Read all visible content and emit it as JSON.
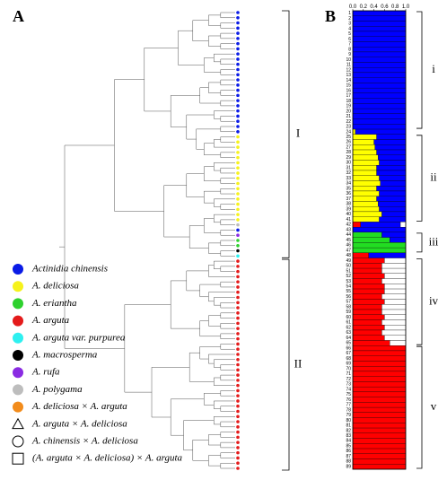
{
  "panels": {
    "a": "A",
    "b": "B"
  },
  "clades": [
    "I",
    "II"
  ],
  "legend": [
    {
      "label": "Actinidia chinensis",
      "color": "#0a1be6",
      "marker": "circle"
    },
    {
      "label": "A. deliciosa",
      "color": "#f6f21c",
      "marker": "circle"
    },
    {
      "label": "A. eriantha",
      "color": "#2ed12e",
      "marker": "circle"
    },
    {
      "label": "A. arguta",
      "color": "#e41b1b",
      "marker": "circle"
    },
    {
      "label": "A. arguta var. purpurea",
      "color": "#2ef0f0",
      "marker": "circle"
    },
    {
      "label": "A. macrosperma",
      "color": "#000000",
      "marker": "circle"
    },
    {
      "label": "A. rufa",
      "color": "#8a2be2",
      "marker": "circle"
    },
    {
      "label": "A. polygama",
      "color": "#bdbdbd",
      "marker": "circle"
    },
    {
      "label": "A. deliciosa × A. arguta",
      "color": "#f28c1c",
      "marker": "circle"
    },
    {
      "label": "A. arguta × A. deliciosa",
      "color": "#000000",
      "marker": "triangle"
    },
    {
      "label": "A. chinensis × A. deliciosa",
      "color": "#000000",
      "marker": "open-circle"
    },
    {
      "label": "(A. arguta × A. deliciosa) × A. arguta",
      "color": "#000000",
      "marker": "square"
    }
  ],
  "chart_data": {
    "type": "stacked-bar-horizontal",
    "xlim": [
      0,
      1
    ],
    "xticks": [
      {
        "value": 0,
        "label": "0.0"
      },
      0.2,
      0.4,
      0.6,
      0.8,
      {
        "value": 1,
        "label": "1.0"
      }
    ],
    "categories": [
      1,
      2,
      3,
      4,
      5,
      6,
      7,
      8,
      9,
      10,
      11,
      12,
      13,
      14,
      15,
      16,
      17,
      18,
      19,
      20,
      21,
      22,
      23,
      24,
      25,
      26,
      27,
      28,
      29,
      30,
      31,
      32,
      33,
      34,
      35,
      36,
      37,
      38,
      39,
      40,
      41,
      42,
      43,
      44,
      45,
      46,
      47,
      48,
      49,
      50,
      51,
      52,
      53,
      54,
      55,
      56,
      57,
      58,
      59,
      60,
      61,
      62,
      63,
      64,
      65,
      66,
      67,
      68,
      69,
      70,
      71,
      72,
      73,
      74,
      75,
      76,
      77,
      78,
      79,
      80,
      81,
      82,
      83,
      84,
      85,
      86,
      87,
      88,
      89
    ],
    "series": [
      {
        "color": "#ff0000",
        "values": [
          0,
          0,
          0,
          0,
          0,
          0,
          0,
          0,
          0,
          0,
          0,
          0,
          0,
          0,
          0,
          0,
          0,
          0,
          0,
          0,
          0,
          0,
          0,
          0,
          0,
          0,
          0,
          0,
          0,
          0,
          0,
          0,
          0,
          0,
          0,
          0,
          0,
          0,
          0,
          0,
          0,
          0.15,
          0,
          0,
          0,
          0,
          0,
          0.3,
          0.6,
          0.55,
          0.55,
          0.6,
          0.55,
          0.6,
          0.6,
          0.55,
          0.6,
          0.55,
          0.55,
          0.6,
          0.55,
          0.6,
          0.55,
          0.6,
          0.7,
          1,
          1,
          1,
          1,
          1,
          1,
          1,
          1,
          1,
          1,
          1,
          1,
          1,
          1,
          1,
          1,
          1,
          1,
          1,
          1,
          1,
          1,
          1,
          1
        ]
      },
      {
        "color": "#22dd22",
        "values": [
          0,
          0,
          0,
          0,
          0,
          0,
          0,
          0,
          0,
          0,
          0,
          0,
          0,
          0,
          0,
          0,
          0,
          0,
          0,
          0,
          0,
          0,
          0,
          0,
          0,
          0,
          0,
          0,
          0,
          0,
          0,
          0,
          0,
          0,
          0,
          0,
          0,
          0,
          0,
          0,
          0,
          0,
          0,
          0.55,
          0.7,
          1,
          1,
          0,
          0,
          0,
          0,
          0,
          0,
          0,
          0,
          0,
          0,
          0,
          0,
          0,
          0,
          0,
          0,
          0,
          0,
          0,
          0,
          0,
          0,
          0,
          0,
          0,
          0,
          0,
          0,
          0,
          0,
          0,
          0,
          0,
          0,
          0,
          0,
          0,
          0,
          0,
          0,
          0,
          0
        ]
      },
      {
        "color": "#ffff00",
        "values": [
          0,
          0,
          0,
          0,
          0,
          0,
          0,
          0,
          0,
          0,
          0,
          0,
          0,
          0,
          0,
          0,
          0,
          0,
          0,
          0,
          0,
          0,
          0,
          0.05,
          0.45,
          0.4,
          0.42,
          0.45,
          0.48,
          0.5,
          0.45,
          0.45,
          0.5,
          0.52,
          0.45,
          0.5,
          0.45,
          0.48,
          0.5,
          0.55,
          0.5,
          0,
          0,
          0,
          0,
          0,
          0,
          0,
          0,
          0,
          0,
          0,
          0,
          0,
          0,
          0,
          0,
          0,
          0,
          0,
          0,
          0,
          0,
          0,
          0,
          0,
          0,
          0,
          0,
          0,
          0,
          0,
          0,
          0,
          0,
          0,
          0,
          0,
          0,
          0,
          0,
          0,
          0,
          0,
          0,
          0,
          0,
          0,
          0
        ]
      },
      {
        "color": "#0000ff",
        "values": [
          1,
          1,
          1,
          1,
          1,
          1,
          1,
          1,
          1,
          1,
          1,
          1,
          1,
          1,
          1,
          1,
          1,
          1,
          1,
          1,
          1,
          1,
          1,
          0.95,
          0.55,
          0.6,
          0.58,
          0.55,
          0.52,
          0.5,
          0.55,
          0.55,
          0.5,
          0.48,
          0.55,
          0.5,
          0.55,
          0.52,
          0.5,
          0.45,
          0.5,
          0.75,
          1,
          0.45,
          0.3,
          0,
          0,
          0.7,
          0,
          0,
          0,
          0,
          0,
          0,
          0,
          0,
          0,
          0,
          0,
          0,
          0,
          0,
          0,
          0,
          0,
          0,
          0,
          0,
          0,
          0,
          0,
          0,
          0,
          0,
          0,
          0,
          0,
          0,
          0,
          0,
          0,
          0,
          0,
          0,
          0,
          0,
          0,
          0,
          0
        ]
      },
      {
        "color": "#ffffff",
        "values": [
          0,
          0,
          0,
          0,
          0,
          0,
          0,
          0,
          0,
          0,
          0,
          0,
          0,
          0,
          0,
          0,
          0,
          0,
          0,
          0,
          0,
          0,
          0,
          0,
          0,
          0,
          0,
          0,
          0,
          0,
          0,
          0,
          0,
          0,
          0,
          0,
          0,
          0,
          0,
          0,
          0,
          0.1,
          0,
          0,
          0,
          0,
          0,
          0,
          0.4,
          0.45,
          0.45,
          0.4,
          0.45,
          0.4,
          0.4,
          0.45,
          0.4,
          0.45,
          0.45,
          0.4,
          0.45,
          0.4,
          0.45,
          0.4,
          0.3,
          0,
          0,
          0,
          0,
          0,
          0,
          0,
          0,
          0,
          0,
          0,
          0,
          0,
          0,
          0,
          0,
          0,
          0,
          0,
          0,
          0,
          0,
          0,
          0
        ]
      }
    ],
    "groups": [
      "i",
      "ii",
      "iii",
      "iv",
      "v"
    ]
  }
}
